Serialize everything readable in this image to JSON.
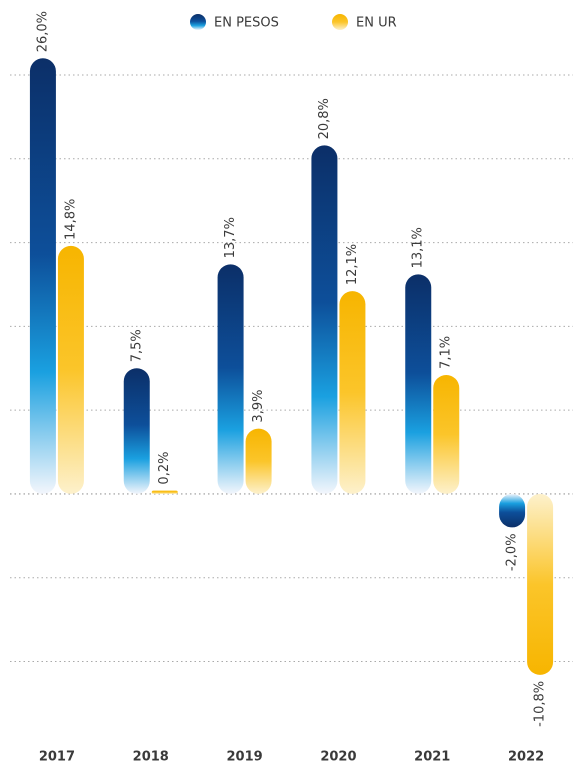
{
  "chart_data": {
    "type": "bar",
    "categories": [
      "2017",
      "2018",
      "2019",
      "2020",
      "2021",
      "2022"
    ],
    "series": [
      {
        "name": "EN PESOS",
        "color": "#0d3a7a",
        "values": [
          26.0,
          7.5,
          13.7,
          20.8,
          13.1,
          -2.0
        ],
        "value_labels": [
          "26,0%",
          "7,5%",
          "13,7%",
          "20,8%",
          "13,1%",
          "-2,0%"
        ]
      },
      {
        "name": "EN UR",
        "color": "#f7b500",
        "values": [
          14.8,
          0.2,
          3.9,
          12.1,
          7.1,
          -10.8
        ],
        "value_labels": [
          "14,8%",
          "0,2%",
          "3,9%",
          "12,1%",
          "7,1%",
          "-10,8%"
        ]
      }
    ],
    "ylim": [
      -12,
      27
    ],
    "yticks": [
      -10,
      -5,
      0,
      5,
      10,
      15,
      20,
      25
    ],
    "grid": true,
    "legend": "top"
  }
}
